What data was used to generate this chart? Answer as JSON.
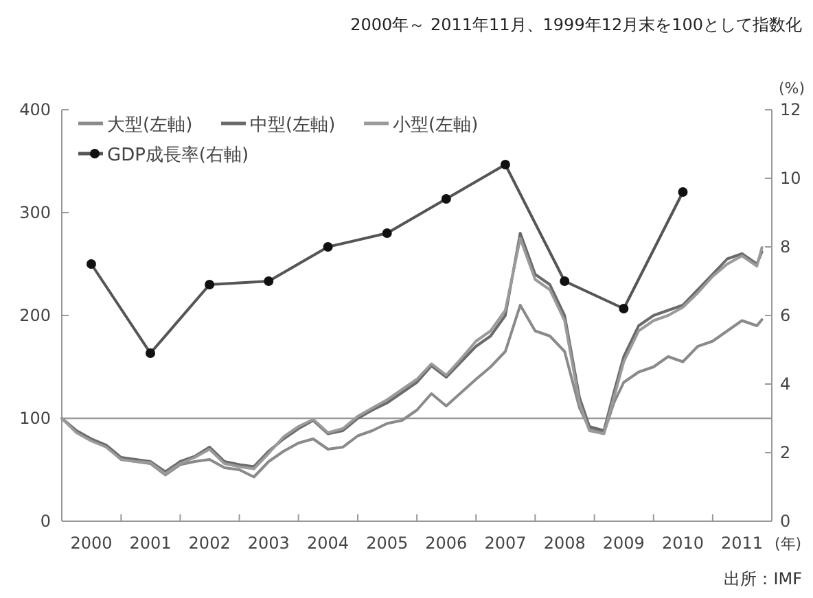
{
  "chart_data": {
    "type": "line",
    "subtitle": "2000年～ 2011年11月、1999年12月末を100として指数化",
    "xlabel": "(年)",
    "y2label": "(%)",
    "annotations": [
      "出所：IMF"
    ],
    "x": [
      "2000-01",
      "2000-04",
      "2000-07",
      "2000-10",
      "2001-01",
      "2001-04",
      "2001-07",
      "2001-10",
      "2002-01",
      "2002-04",
      "2002-07",
      "2002-10",
      "2003-01",
      "2003-04",
      "2003-07",
      "2003-10",
      "2004-01",
      "2004-04",
      "2004-07",
      "2004-10",
      "2005-01",
      "2005-04",
      "2005-07",
      "2005-10",
      "2006-01",
      "2006-04",
      "2006-07",
      "2006-10",
      "2007-01",
      "2007-04",
      "2007-07",
      "2007-10",
      "2008-01",
      "2008-04",
      "2008-07",
      "2008-10",
      "2008-12",
      "2009-03",
      "2009-05",
      "2009-07",
      "2009-10",
      "2010-01",
      "2010-04",
      "2010-07",
      "2010-10",
      "2011-01",
      "2011-04",
      "2011-07",
      "2011-10",
      "2011-11"
    ],
    "series": [
      {
        "name": "大型(左軸)",
        "color": "#8a8a8a",
        "values": [
          100,
          87,
          79,
          73,
          60,
          58,
          56,
          45,
          55,
          58,
          60,
          52,
          50,
          43,
          58,
          68,
          76,
          80,
          70,
          72,
          83,
          88,
          95,
          98,
          108,
          124,
          112,
          125,
          138,
          150,
          165,
          210,
          185,
          180,
          165,
          110,
          90,
          86,
          115,
          135,
          145,
          150,
          160,
          155,
          170,
          175,
          185,
          195,
          190,
          196
        ]
      },
      {
        "name": "中型(左軸)",
        "color": "#6a6a6a",
        "values": [
          100,
          88,
          80,
          74,
          62,
          60,
          58,
          48,
          58,
          63,
          72,
          58,
          55,
          53,
          68,
          80,
          90,
          98,
          85,
          88,
          100,
          108,
          115,
          125,
          135,
          151,
          140,
          155,
          170,
          180,
          200,
          280,
          240,
          230,
          200,
          120,
          92,
          88,
          125,
          160,
          190,
          200,
          205,
          210,
          225,
          240,
          255,
          260,
          250,
          262
        ]
      },
      {
        "name": "小型(左軸)",
        "color": "#9a9a9a",
        "values": [
          100,
          86,
          78,
          72,
          60,
          58,
          57,
          46,
          56,
          62,
          70,
          56,
          53,
          51,
          66,
          82,
          92,
          99,
          86,
          90,
          102,
          110,
          118,
          128,
          138,
          153,
          142,
          158,
          175,
          185,
          205,
          275,
          235,
          225,
          195,
          115,
          88,
          85,
          120,
          155,
          185,
          195,
          200,
          208,
          222,
          238,
          250,
          258,
          248,
          266
        ]
      },
      {
        "name": "GDP成長率(右軸)",
        "color": "#555555",
        "axis": "y2",
        "marker": "circle",
        "x": [
          "2000-07",
          "2001-07",
          "2002-07",
          "2003-07",
          "2004-07",
          "2005-07",
          "2006-07",
          "2007-07",
          "2008-07",
          "2009-07",
          "2010-07"
        ],
        "values": [
          7.5,
          4.9,
          6.9,
          7.0,
          8.0,
          8.4,
          9.4,
          10.4,
          7.0,
          6.2,
          9.6
        ]
      }
    ],
    "xlim": [
      "2000-01",
      "2012-01"
    ],
    "xticks": [
      {
        "value": "2000-07",
        "label": "2000"
      },
      {
        "value": "2001-07",
        "label": "2001"
      },
      {
        "value": "2002-07",
        "label": "2002"
      },
      {
        "value": "2003-07",
        "label": "2003"
      },
      {
        "value": "2004-07",
        "label": "2004"
      },
      {
        "value": "2005-07",
        "label": "2005"
      },
      {
        "value": "2006-07",
        "label": "2006"
      },
      {
        "value": "2007-07",
        "label": "2007"
      },
      {
        "value": "2008-07",
        "label": "2008"
      },
      {
        "value": "2009-07",
        "label": "2009"
      },
      {
        "value": "2010-07",
        "label": "2010"
      },
      {
        "value": "2011-07",
        "label": "2011"
      },
      {
        "value": "2001-01",
        "label": null
      },
      {
        "value": "2002-01",
        "label": null
      },
      {
        "value": "2003-01",
        "label": null
      },
      {
        "value": "2004-01",
        "label": null
      },
      {
        "value": "2005-01",
        "label": null
      },
      {
        "value": "2006-01",
        "label": null
      },
      {
        "value": "2007-01",
        "label": null
      },
      {
        "value": "2008-01",
        "label": null
      },
      {
        "value": "2009-01",
        "label": null
      },
      {
        "value": "2010-01",
        "label": null
      },
      {
        "value": "2011-01",
        "label": null
      }
    ],
    "ylim": [
      0,
      400
    ],
    "yticks": [
      0,
      100,
      200,
      300,
      400
    ],
    "y2lim": [
      0,
      12
    ],
    "y2ticks": [
      0,
      2,
      4,
      6,
      8,
      10,
      12
    ],
    "ref_lines": [
      {
        "axis": "y",
        "value": 100,
        "color": "#999999"
      }
    ],
    "grid": false,
    "legend": "top left",
    "line_style": "solid"
  }
}
